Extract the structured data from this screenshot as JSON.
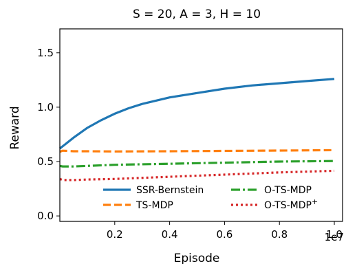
{
  "chart_data": {
    "type": "line",
    "title": "S = 20, A = 3, H = 10",
    "xlabel": "Episode",
    "ylabel": "Reward",
    "x_offset_label": "1e7",
    "xlim": [
      0,
      10300000
    ],
    "ylim": [
      -0.05,
      1.72
    ],
    "x_ticks": [
      2000000,
      4000000,
      6000000,
      8000000,
      10000000
    ],
    "x_tick_labels": [
      "0.2",
      "0.4",
      "0.6",
      "0.8",
      "1.0"
    ],
    "y_ticks": [
      0.0,
      0.5,
      1.0,
      1.5
    ],
    "y_tick_labels": [
      "0.0",
      "0.5",
      "1.0",
      "1.5"
    ],
    "grid": false,
    "legend_position": "lower-right",
    "series": [
      {
        "name": "SSR-Bernstein",
        "color": "#1f77b4",
        "style": "solid",
        "x": [
          0,
          200000,
          500000,
          1000000,
          1500000,
          2000000,
          2500000,
          3000000,
          4000000,
          5000000,
          6000000,
          7000000,
          8000000,
          9000000,
          10000000
        ],
        "y": [
          0.62,
          0.66,
          0.72,
          0.81,
          0.88,
          0.94,
          0.99,
          1.03,
          1.09,
          1.13,
          1.17,
          1.2,
          1.22,
          1.24,
          1.26
        ]
      },
      {
        "name": "TS-MDP",
        "color": "#ff7f0e",
        "style": "dashed",
        "x": [
          0,
          100000,
          500000,
          1000000,
          2000000,
          4000000,
          6000000,
          8000000,
          10000000
        ],
        "y": [
          0.59,
          0.6,
          0.595,
          0.595,
          0.593,
          0.595,
          0.598,
          0.601,
          0.605
        ]
      },
      {
        "name": "O-TS-MDP",
        "color": "#2ca02c",
        "style": "dashdot",
        "x": [
          0,
          100000,
          500000,
          1000000,
          2000000,
          4000000,
          6000000,
          8000000,
          10000000
        ],
        "y": [
          0.46,
          0.455,
          0.455,
          0.46,
          0.47,
          0.48,
          0.49,
          0.5,
          0.505
        ]
      },
      {
        "name": "O-TS-MDP",
        "legend_superscript": "+",
        "color": "#d62728",
        "style": "dotted",
        "x": [
          0,
          100000,
          500000,
          1000000,
          2000000,
          4000000,
          6000000,
          8000000,
          10000000
        ],
        "y": [
          0.34,
          0.33,
          0.33,
          0.335,
          0.34,
          0.36,
          0.38,
          0.4,
          0.415
        ]
      }
    ]
  }
}
